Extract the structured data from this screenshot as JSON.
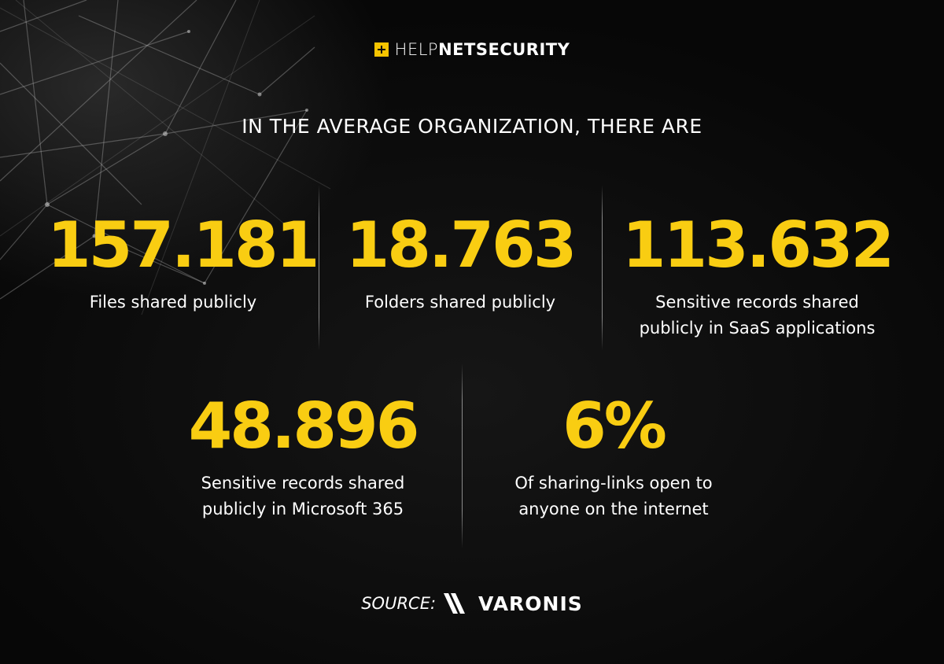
{
  "header": {
    "logo_light": "HELP",
    "logo_bold": "NETSECURITY"
  },
  "headline": "IN THE AVERAGE ORGANIZATION, THERE ARE",
  "stats": [
    {
      "value": "157.181",
      "label": "Files shared publicly"
    },
    {
      "value": "18.763",
      "label": "Folders shared publicly"
    },
    {
      "value": "113.632",
      "label": "Sensitive records shared\npublicly in SaaS applications"
    },
    {
      "value": "48.896",
      "label": "Sensitive records shared\npublicly in Microsoft 365"
    },
    {
      "value": "6%",
      "label": "Of sharing-links open to\nanyone on the internet"
    }
  ],
  "source": {
    "label": "SOURCE:",
    "brand": "VARONIS"
  },
  "colors": {
    "accent": "#f9cd12",
    "background": "#0b0b0b",
    "text": "#ffffff"
  },
  "icons": {
    "logo": "plus-box-icon",
    "brand": "varonis-double-slash-icon"
  }
}
